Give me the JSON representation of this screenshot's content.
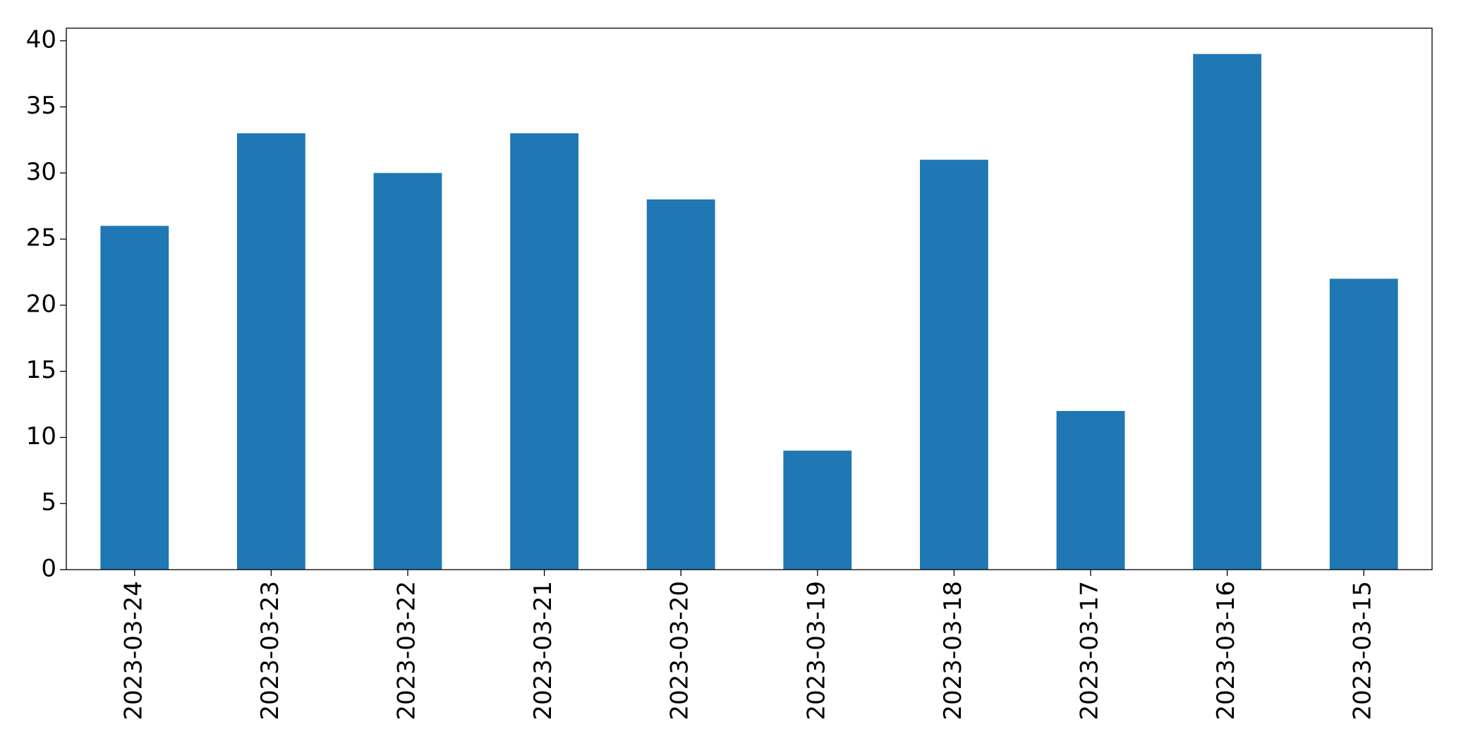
{
  "chart_data": {
    "type": "bar",
    "categories": [
      "2023-03-24",
      "2023-03-23",
      "2023-03-22",
      "2023-03-21",
      "2023-03-20",
      "2023-03-19",
      "2023-03-18",
      "2023-03-17",
      "2023-03-16",
      "2023-03-15"
    ],
    "values": [
      26,
      33,
      30,
      33,
      28,
      9,
      31,
      12,
      39,
      22
    ],
    "color": "#1f77b4",
    "ylim": [
      0,
      40.95
    ],
    "yticks": [
      0,
      5,
      10,
      15,
      20,
      25,
      30,
      35,
      40
    ],
    "grid": false
  }
}
